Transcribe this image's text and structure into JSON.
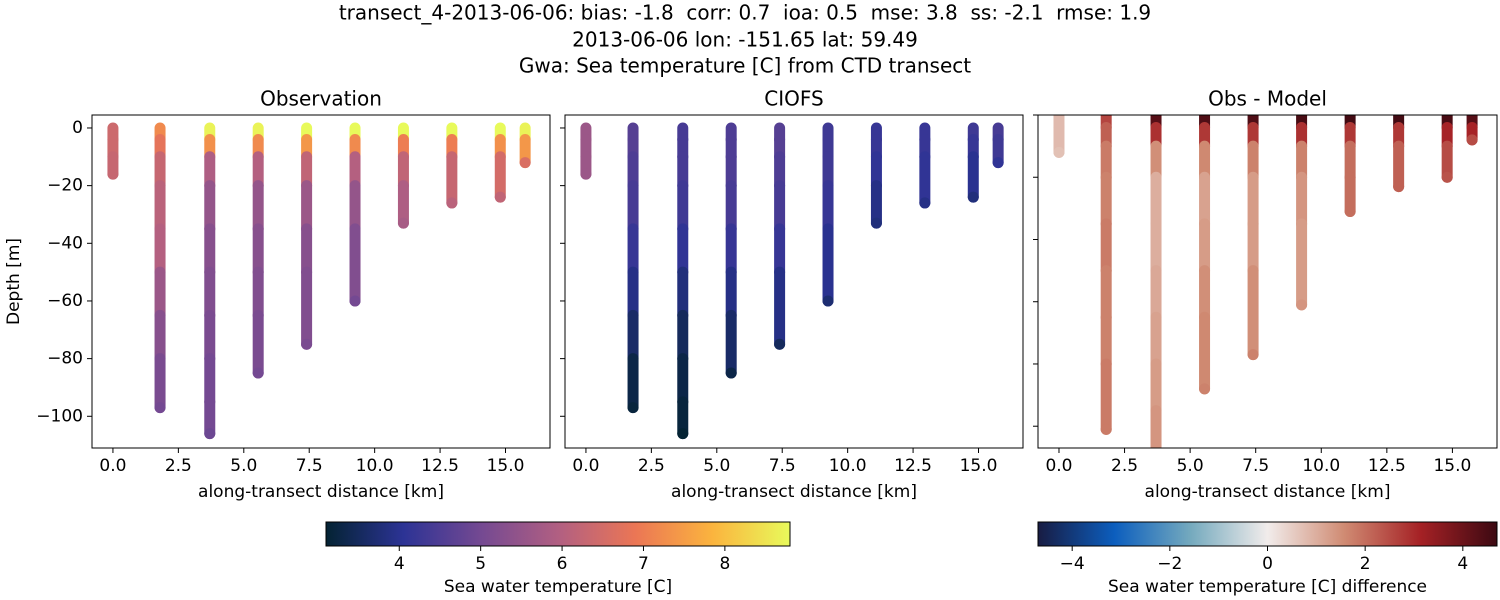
{
  "figure": {
    "title": [
      "transect_4-2013-06-06: bias: -1.8  corr: 0.7  ioa: 0.5  mse: 3.8  ss: -2.1  rmse: 1.9",
      "2013-06-06 lon: -151.65 lat: 59.49",
      "Gwa: Sea temperature [C] from CTD transect"
    ]
  },
  "chart_data": [
    {
      "type": "scatter",
      "title": "Observation",
      "xlabel": "along-transect distance [km]",
      "ylabel": "Depth [m]",
      "xlim": [
        -0.8,
        16.7
      ],
      "ylim": [
        -111,
        4.5
      ],
      "xticks": [
        {
          "value": 0,
          "label": "0.0"
        },
        2.5,
        {
          "value": 5,
          "label": "5.0"
        },
        7.5,
        {
          "value": 10,
          "label": "10.0"
        },
        12.5,
        {
          "value": 15,
          "label": "15.0"
        }
      ],
      "yticks": [
        {
          "value": -100,
          "label": "−100"
        },
        {
          "value": -80,
          "label": "−80"
        },
        {
          "value": -60,
          "label": "−60"
        },
        {
          "value": -40,
          "label": "−40"
        },
        {
          "value": -20,
          "label": "−20"
        },
        0
      ],
      "clim": [
        3.1,
        8.8
      ],
      "colors": [
        "#042333",
        "#2c3395",
        "#744992",
        "#b15f82",
        "#eb7655",
        "#fbb43e",
        "#e8fa5b"
      ],
      "casts": [
        {
          "x": 0,
          "depth": [
            0,
            -4,
            -10,
            -16
          ],
          "values": [
            6.4,
            6.4,
            6.3,
            6.3
          ]
        },
        {
          "x": 1.8,
          "depth": [
            0,
            -4,
            -10,
            -20,
            -35,
            -50,
            -65,
            -80,
            -97
          ],
          "values": [
            7.2,
            6.8,
            6.3,
            6.1,
            6.0,
            5.6,
            5.3,
            5.1,
            5.0
          ]
        },
        {
          "x": 3.7,
          "depth": [
            0,
            -4,
            -10,
            -20,
            -35,
            -50,
            -65,
            -80,
            -95,
            -106
          ],
          "values": [
            8.7,
            7.3,
            5.9,
            5.5,
            5.3,
            5.2,
            5.1,
            5.0,
            5.0,
            4.9
          ]
        },
        {
          "x": 5.55,
          "depth": [
            0,
            -4,
            -10,
            -20,
            -35,
            -50,
            -65,
            -85
          ],
          "values": [
            8.7,
            7.2,
            6.0,
            5.5,
            5.3,
            5.2,
            5.1,
            5.0
          ]
        },
        {
          "x": 7.4,
          "depth": [
            0,
            -4,
            -10,
            -20,
            -35,
            -50,
            -75
          ],
          "values": [
            8.8,
            7.4,
            6.2,
            5.6,
            5.3,
            5.2,
            5.1
          ]
        },
        {
          "x": 9.25,
          "depth": [
            0,
            -4,
            -10,
            -20,
            -35,
            -60
          ],
          "values": [
            8.8,
            7.2,
            6.0,
            5.5,
            5.2,
            5.0
          ]
        },
        {
          "x": 11.1,
          "depth": [
            0,
            -4,
            -10,
            -20,
            -33
          ],
          "values": [
            8.8,
            7.0,
            6.2,
            5.9,
            5.8
          ]
        },
        {
          "x": 12.95,
          "depth": [
            0,
            -4,
            -10,
            -26
          ],
          "values": [
            8.8,
            7.0,
            6.3,
            6.1
          ]
        },
        {
          "x": 14.8,
          "depth": [
            0,
            -4,
            -10,
            -24
          ],
          "values": [
            8.8,
            7.3,
            6.5,
            6.2
          ]
        },
        {
          "x": 15.75,
          "depth": [
            0,
            -4,
            -12
          ],
          "values": [
            8.7,
            7.4,
            6.6
          ]
        }
      ]
    },
    {
      "type": "scatter",
      "title": "CIOFS",
      "xlabel": "along-transect distance [km]",
      "xlim": [
        -0.8,
        16.7
      ],
      "ylim": [
        -111,
        4.5
      ],
      "xticks": [
        {
          "value": 0,
          "label": "0.0"
        },
        2.5,
        {
          "value": 5,
          "label": "5.0"
        },
        7.5,
        {
          "value": 10,
          "label": "10.0"
        },
        12.5,
        {
          "value": 15,
          "label": "15.0"
        }
      ],
      "yticks": [
        -100,
        -80,
        -60,
        -40,
        -20,
        0
      ],
      "clim": [
        3.1,
        8.8
      ],
      "colors": [
        "#042333",
        "#2c3395",
        "#744992",
        "#b15f82",
        "#eb7655",
        "#fbb43e",
        "#e8fa5b"
      ],
      "casts": [
        {
          "x": 0,
          "depth": [
            0,
            -4,
            -10,
            -16
          ],
          "values": [
            5.6,
            5.6,
            5.6,
            5.6
          ]
        },
        {
          "x": 1.8,
          "depth": [
            0,
            -4,
            -10,
            -20,
            -35,
            -50,
            -65,
            -80,
            -97
          ],
          "values": [
            4.6,
            4.6,
            4.5,
            4.4,
            4.2,
            3.9,
            3.6,
            3.3,
            3.2
          ]
        },
        {
          "x": 3.7,
          "depth": [
            0,
            -4,
            -10,
            -20,
            -35,
            -50,
            -65,
            -80,
            -95,
            -106
          ],
          "values": [
            4.4,
            4.4,
            4.4,
            4.3,
            4.1,
            3.8,
            3.5,
            3.3,
            3.2,
            3.1
          ]
        },
        {
          "x": 5.55,
          "depth": [
            0,
            -4,
            -10,
            -20,
            -35,
            -50,
            -65,
            -85
          ],
          "values": [
            4.5,
            4.5,
            4.5,
            4.4,
            4.2,
            3.9,
            3.6,
            3.3
          ]
        },
        {
          "x": 7.4,
          "depth": [
            0,
            -4,
            -10,
            -20,
            -35,
            -50,
            -75
          ],
          "values": [
            4.6,
            4.6,
            4.5,
            4.4,
            4.2,
            3.9,
            3.5
          ]
        },
        {
          "x": 9.25,
          "depth": [
            0,
            -4,
            -10,
            -20,
            -35,
            -60
          ],
          "values": [
            4.3,
            4.3,
            4.3,
            4.2,
            4.0,
            3.7
          ]
        },
        {
          "x": 11.1,
          "depth": [
            0,
            -4,
            -10,
            -20,
            -33
          ],
          "values": [
            4.2,
            4.2,
            4.1,
            3.9,
            3.8
          ]
        },
        {
          "x": 12.95,
          "depth": [
            0,
            -4,
            -10,
            -26
          ],
          "values": [
            4.2,
            4.2,
            4.1,
            3.9
          ]
        },
        {
          "x": 14.8,
          "depth": [
            0,
            -4,
            -10,
            -24
          ],
          "values": [
            4.3,
            4.2,
            4.0,
            3.8
          ]
        },
        {
          "x": 15.75,
          "depth": [
            0,
            -4,
            -12
          ],
          "values": [
            4.4,
            4.3,
            4.1
          ]
        }
      ]
    },
    {
      "type": "scatter",
      "title": "Obs - Model",
      "xlabel": "along-transect distance [km]",
      "xlim": [
        -0.8,
        16.7
      ],
      "ylim": [
        -107,
        0
      ],
      "xticks": [
        {
          "value": 0,
          "label": "0.0"
        },
        2.5,
        {
          "value": 5,
          "label": "5.0"
        },
        7.5,
        {
          "value": 10,
          "label": "10.0"
        },
        12.5,
        {
          "value": 15,
          "label": "15.0"
        }
      ],
      "yticks": [
        -100,
        -80,
        -60,
        -40,
        -20,
        0
      ],
      "clim": [
        -4.7,
        4.7
      ],
      "colors": [
        "#181c43",
        "#0c5ebe",
        "#75aabe",
        "#f1eceb",
        "#d08b73",
        "#a52125",
        "#3c0912"
      ],
      "casts": [
        {
          "x": 0,
          "depth": [
            0,
            -4,
            -12
          ],
          "values": [
            0.8,
            0.8,
            0.7
          ]
        },
        {
          "x": 1.8,
          "depth": [
            0,
            -4,
            -10,
            -20,
            -35,
            -50,
            -65,
            -80,
            -101
          ],
          "values": [
            2.6,
            2.2,
            1.8,
            1.7,
            1.8,
            1.7,
            1.7,
            1.8,
            1.8
          ]
        },
        {
          "x": 3.7,
          "depth": [
            0,
            -4,
            -10,
            -20,
            -35,
            -50,
            -65,
            -80,
            -95,
            -112
          ],
          "values": [
            4.3,
            2.9,
            1.5,
            1.0,
            1.0,
            1.1,
            1.2,
            1.3,
            1.4,
            1.4
          ]
        },
        {
          "x": 5.55,
          "depth": [
            0,
            -4,
            -10,
            -20,
            -35,
            -50,
            -65,
            -88
          ],
          "values": [
            4.4,
            2.8,
            1.6,
            1.2,
            1.3,
            1.5,
            1.6,
            1.7
          ]
        },
        {
          "x": 7.4,
          "depth": [
            0,
            -4,
            -10,
            -20,
            -35,
            -50,
            -77
          ],
          "values": [
            4.4,
            2.8,
            1.7,
            1.3,
            1.3,
            1.5,
            1.7
          ]
        },
        {
          "x": 9.25,
          "depth": [
            0,
            -4,
            -10,
            -20,
            -35,
            -61
          ],
          "values": [
            4.5,
            2.9,
            1.7,
            1.4,
            1.3,
            1.4
          ]
        },
        {
          "x": 11.1,
          "depth": [
            0,
            -4,
            -10,
            -20,
            -31
          ],
          "values": [
            4.6,
            2.8,
            2.0,
            2.0,
            2.0
          ]
        },
        {
          "x": 12.95,
          "depth": [
            0,
            -4,
            -10,
            -23
          ],
          "values": [
            4.6,
            2.8,
            2.2,
            2.2
          ]
        },
        {
          "x": 14.8,
          "depth": [
            0,
            -4,
            -10,
            -20
          ],
          "values": [
            4.5,
            3.1,
            2.5,
            2.4
          ]
        },
        {
          "x": 15.75,
          "depth": [
            0,
            -4,
            -8
          ],
          "values": [
            4.3,
            3.1,
            2.5
          ]
        }
      ]
    },
    {
      "type": "colorbar",
      "label": "Sea water temperature [C]",
      "lim": [
        3.1,
        8.8
      ],
      "ticks": [
        4,
        5,
        6,
        7,
        8
      ],
      "colors": [
        "#042333",
        "#2c3395",
        "#744992",
        "#b15f82",
        "#eb7655",
        "#fbb43e",
        "#e8fa5b"
      ]
    },
    {
      "type": "colorbar",
      "label": "Sea water temperature [C] difference",
      "lim": [
        -4.7,
        4.7
      ],
      "ticks": [
        {
          "value": -4,
          "label": "−4"
        },
        {
          "value": -2,
          "label": "−2"
        },
        0,
        2,
        4
      ],
      "colors": [
        "#181c43",
        "#0c5ebe",
        "#75aabe",
        "#f1eceb",
        "#d08b73",
        "#a52125",
        "#3c0912"
      ]
    }
  ]
}
